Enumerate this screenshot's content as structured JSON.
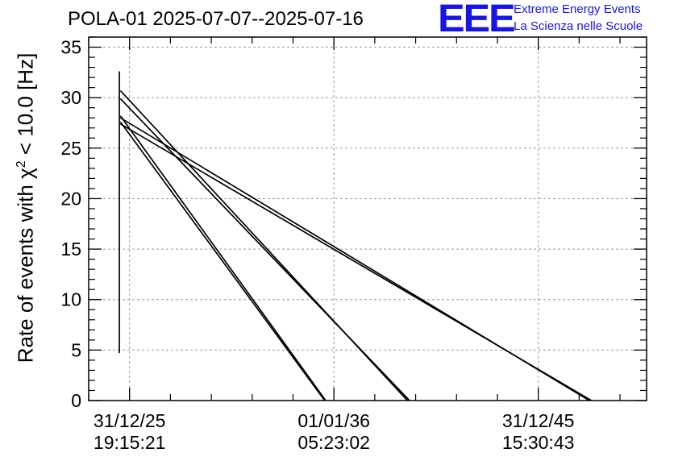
{
  "title": "POLA-01 2025-07-07--2025-07-16",
  "logo": {
    "mark": "EEE",
    "line1": "Extreme Energy Events",
    "line2": "La Scienza nelle Scuole"
  },
  "chart_data": {
    "type": "line",
    "title": "POLA-01 2025-07-07--2025-07-16",
    "ylabel_prefix": "Rate of events with ",
    "ylabel_symbol": "χ",
    "ylabel_exponent": "2",
    "ylabel_suffix": " < 10.0 [Hz]",
    "ylim": [
      0,
      36
    ],
    "yticks": [
      0,
      5,
      10,
      15,
      20,
      25,
      30,
      35
    ],
    "xlim": [
      -0.2,
      2.53
    ],
    "xticks": [
      {
        "pos": 0,
        "date": "31/12/25",
        "time": "19:15:21"
      },
      {
        "pos": 1,
        "date": "01/01/36",
        "time": "05:23:02"
      },
      {
        "pos": 2,
        "date": "31/12/45",
        "time": "15:30:43"
      }
    ],
    "grid": true,
    "series": [
      {
        "x": [
          -0.05,
          -0.05
        ],
        "y": [
          4.7,
          32.6
        ]
      },
      {
        "x": [
          -0.045,
          0.96
        ],
        "y": [
          28.2,
          0
        ]
      },
      {
        "x": [
          -0.045,
          0.955
        ],
        "y": [
          27.6,
          0
        ]
      },
      {
        "x": [
          -0.045,
          1.36
        ],
        "y": [
          30.7,
          0
        ]
      },
      {
        "x": [
          -0.045,
          1.37
        ],
        "y": [
          29.9,
          0
        ]
      },
      {
        "x": [
          -0.045,
          2.25
        ],
        "y": [
          28.0,
          0
        ]
      },
      {
        "x": [
          -0.045,
          2.26
        ],
        "y": [
          27.4,
          0
        ]
      }
    ]
  }
}
